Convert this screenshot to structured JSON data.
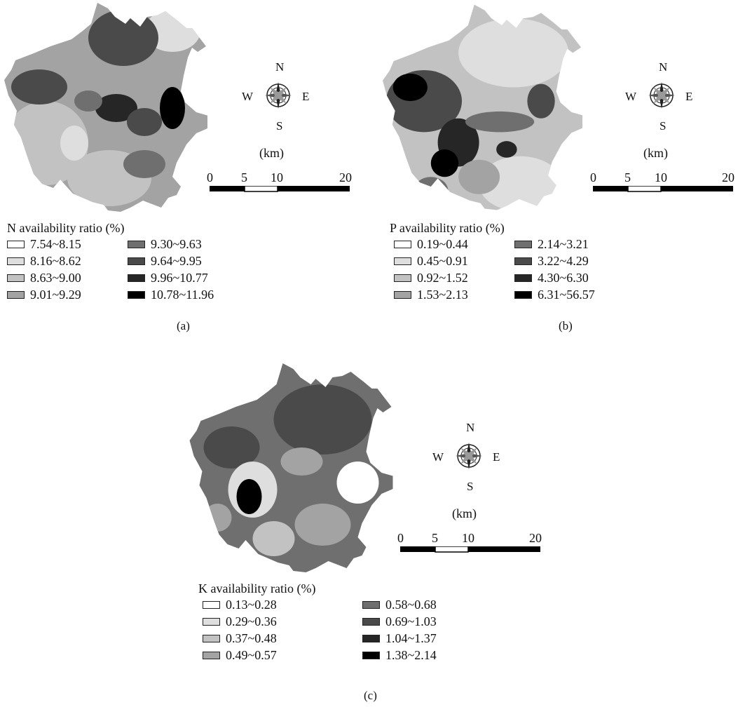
{
  "panels": [
    {
      "id": "a",
      "caption": "(a)",
      "legend_title": "N availability ratio (%)",
      "classes": [
        "7.54~8.15",
        "8.16~8.62",
        "8.63~9.00",
        "9.01~9.29",
        "9.30~9.63",
        "9.64~9.95",
        "9.96~10.77",
        "10.78~11.96"
      ],
      "compass": {
        "n": "N",
        "s": "S",
        "e": "E",
        "w": "W"
      },
      "scale": {
        "unit": "(km)",
        "ticks": [
          "0",
          "5",
          "10",
          "20"
        ]
      }
    },
    {
      "id": "b",
      "caption": "(b)",
      "legend_title": "P availability ratio (%)",
      "classes": [
        "0.19~0.44",
        "0.45~0.91",
        "0.92~1.52",
        "1.53~2.13",
        "2.14~3.21",
        "3.22~4.29",
        "4.30~6.30",
        "6.31~56.57"
      ],
      "compass": {
        "n": "N",
        "s": "S",
        "e": "E",
        "w": "W"
      },
      "scale": {
        "unit": "(km)",
        "ticks": [
          "0",
          "5",
          "10",
          "20"
        ]
      }
    },
    {
      "id": "c",
      "caption": "(c)",
      "legend_title": "K availability ratio (%)",
      "classes": [
        "0.13~0.28",
        "0.29~0.36",
        "0.37~0.48",
        "0.49~0.57",
        "0.58~0.68",
        "0.69~1.03",
        "1.04~1.37",
        "1.38~2.14"
      ],
      "compass": {
        "n": "N",
        "s": "S",
        "e": "E",
        "w": "W"
      },
      "scale": {
        "unit": "(km)",
        "ticks": [
          "0",
          "5",
          "10",
          "20"
        ]
      }
    }
  ],
  "class_colors": [
    "#ffffff",
    "#dedede",
    "#c2c2c2",
    "#a3a3a3",
    "#6f6f6f",
    "#4a4a4a",
    "#262626",
    "#000000"
  ]
}
